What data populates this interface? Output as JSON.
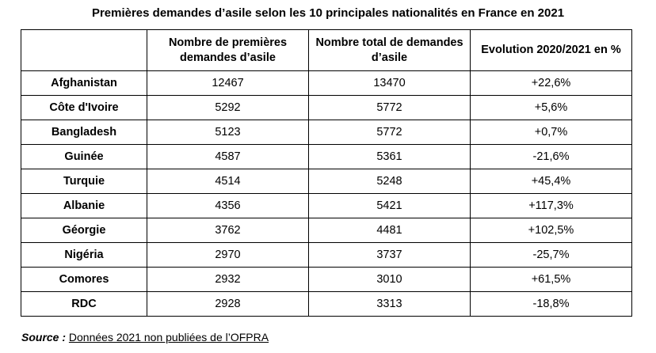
{
  "title": "Premières demandes d’asile selon les 10 principales nationalités en France en 2021",
  "table": {
    "headers": [
      "",
      "Nombre de premières demandes d’asile",
      "Nombre total de demandes d’asile",
      "Evolution 2020/2021 en %"
    ],
    "rows": [
      [
        "Afghanistan",
        "12467",
        "13470",
        "+22,6%"
      ],
      [
        "Côte d'Ivoire",
        "5292",
        "5772",
        "+5,6%"
      ],
      [
        "Bangladesh",
        "5123",
        "5772",
        "+0,7%"
      ],
      [
        "Guinée",
        "4587",
        "5361",
        "-21,6%"
      ],
      [
        "Turquie",
        "4514",
        "5248",
        "+45,4%"
      ],
      [
        "Albanie",
        "4356",
        "5421",
        "+117,3%"
      ],
      [
        "Géorgie",
        "3762",
        "4481",
        "+102,5%"
      ],
      [
        "Nigéria",
        "2970",
        "3737",
        "-25,7%"
      ],
      [
        "Comores",
        "2932",
        "3010",
        "+61,5%"
      ],
      [
        "RDC",
        "2928",
        "3313",
        "-18,8%"
      ]
    ]
  },
  "source": {
    "label": "Source :",
    "text": "Données 2021 non publiées de l’OFPRA"
  }
}
